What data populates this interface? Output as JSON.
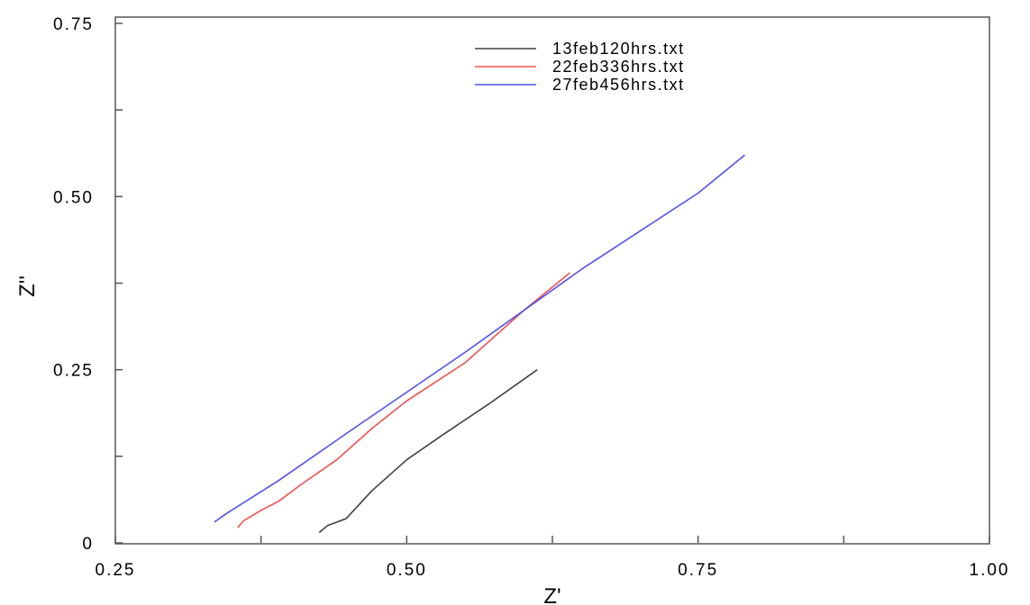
{
  "chart_data": {
    "type": "line",
    "title": "",
    "xlabel": "Z'",
    "ylabel": "Z''",
    "xlim": [
      0.25,
      1.0
    ],
    "ylim": [
      0,
      0.75
    ],
    "x_ticks": [
      {
        "value": 0.25,
        "label": "0.25"
      },
      {
        "value": 0.5,
        "label": "0.50"
      },
      {
        "value": 0.75,
        "label": "0.75"
      },
      {
        "value": 1.0,
        "label": "1.00"
      }
    ],
    "y_ticks": [
      {
        "value": 0,
        "label": "0"
      },
      {
        "value": 0.25,
        "label": "0.25"
      },
      {
        "value": 0.5,
        "label": "0.50"
      },
      {
        "value": 0.75,
        "label": "0.75"
      }
    ],
    "x_minor_step": 0.125,
    "y_minor_step": 0.125,
    "grid": false,
    "legend_position": "top-center",
    "series": [
      {
        "name": "13feb120hrs.txt",
        "color": "#404040",
        "points": [
          [
            0.425,
            0.015
          ],
          [
            0.432,
            0.025
          ],
          [
            0.448,
            0.035
          ],
          [
            0.47,
            0.075
          ],
          [
            0.5,
            0.12
          ],
          [
            0.53,
            0.155
          ],
          [
            0.57,
            0.2
          ],
          [
            0.612,
            0.25
          ]
        ]
      },
      {
        "name": "22feb336hrs.txt",
        "color": "#f05050",
        "points": [
          [
            0.355,
            0.022
          ],
          [
            0.36,
            0.032
          ],
          [
            0.375,
            0.047
          ],
          [
            0.39,
            0.06
          ],
          [
            0.41,
            0.085
          ],
          [
            0.44,
            0.12
          ],
          [
            0.47,
            0.165
          ],
          [
            0.5,
            0.205
          ],
          [
            0.55,
            0.26
          ],
          [
            0.6,
            0.335
          ],
          [
            0.64,
            0.39
          ]
        ]
      },
      {
        "name": "27feb456hrs.txt",
        "color": "#5050f0",
        "points": [
          [
            0.335,
            0.03
          ],
          [
            0.345,
            0.042
          ],
          [
            0.39,
            0.09
          ],
          [
            0.45,
            0.16
          ],
          [
            0.55,
            0.275
          ],
          [
            0.65,
            0.395
          ],
          [
            0.75,
            0.505
          ],
          [
            0.79,
            0.56
          ]
        ]
      }
    ]
  }
}
